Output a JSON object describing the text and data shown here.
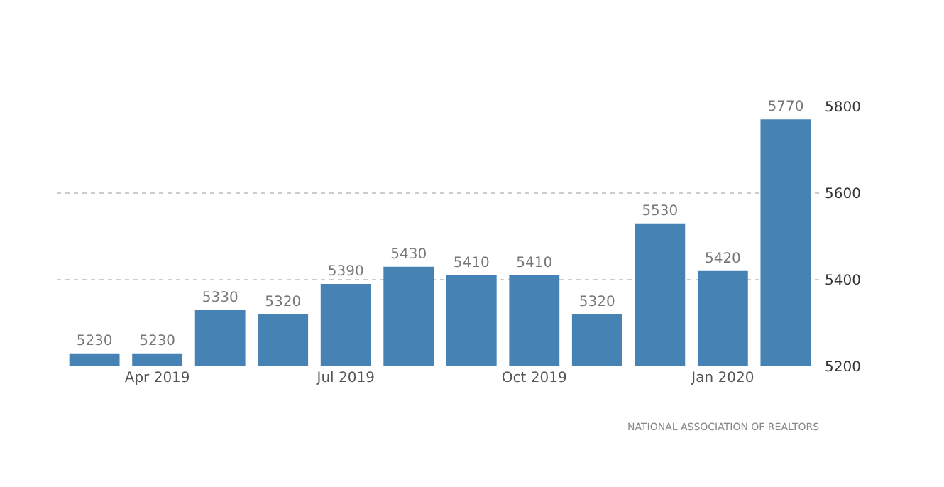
{
  "chart_data": {
    "type": "bar",
    "categories": [
      null,
      "Apr 2019",
      null,
      null,
      "Jul 2019",
      null,
      null,
      "Oct 2019",
      null,
      null,
      "Jan 2020",
      null
    ],
    "values": [
      5230,
      5230,
      5330,
      5320,
      5390,
      5430,
      5410,
      5410,
      5320,
      5530,
      5420,
      5770
    ],
    "color": "#4682b4",
    "ylim": [
      5200,
      5800
    ],
    "yticks": [
      5200,
      5400,
      5600,
      5800
    ],
    "grid": "y",
    "legend": false,
    "data_labels": true,
    "annotations": [
      "NATIONAL ASSOCIATION OF REALTORS"
    ]
  }
}
